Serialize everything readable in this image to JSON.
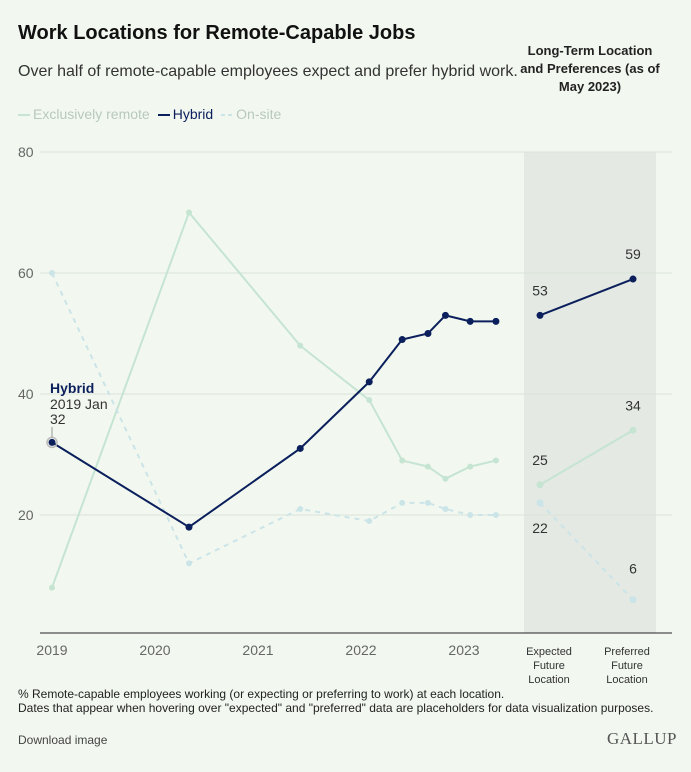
{
  "title": "Work Locations for Remote-Capable Jobs",
  "subtitle": "Over half of remote-capable employees expect and prefer hybrid work.",
  "long_term_heading": "Long-Term Location and Preferences (as of May 2023)",
  "footnote_1": "% Remote-capable employees working (or expecting or preferring to work) at each location.",
  "footnote_2": "Dates that appear when hovering over \"expected\" and \"preferred\" data are placeholders for data visualization purposes.",
  "download_label": "Download image",
  "logo": "GALLUP",
  "chart_data": {
    "type": "line",
    "ylim": [
      0,
      80
    ],
    "yticks": [
      20,
      40,
      60,
      80
    ],
    "xticks": [
      "2019",
      "2020",
      "2021",
      "2022",
      "2023"
    ],
    "grid": true,
    "legend_placement": "top-left",
    "x": [
      "2019 Jan",
      "2020 May",
      "2021 Jun",
      "2022 Feb",
      "2022 Jun",
      "2022 Aug",
      "2022 Oct",
      "2023 Feb",
      "2023 May"
    ],
    "xnum": [
      2019.0,
      2020.33,
      2021.41,
      2022.08,
      2022.4,
      2022.65,
      2022.82,
      2023.06,
      2023.31
    ],
    "series": [
      {
        "name": "Exclusively remote",
        "color": "#c6e4d2",
        "dashed": false,
        "values": [
          8,
          70,
          48,
          39,
          29,
          28,
          26,
          28,
          29
        ],
        "long_term": [
          25,
          34
        ]
      },
      {
        "name": "Hybrid",
        "color": "#0b1f5c",
        "dashed": false,
        "values": [
          32,
          18,
          31,
          42,
          49,
          50,
          53,
          52,
          52
        ],
        "long_term": [
          53,
          59
        ]
      },
      {
        "name": "On-site",
        "color": "#cbe4e8",
        "dashed": true,
        "values": [
          60,
          12,
          21,
          19,
          22,
          22,
          21,
          20,
          20
        ],
        "long_term": [
          22,
          6
        ]
      }
    ],
    "long_term_categories": [
      "Expected Future Location",
      "Preferred Future Location"
    ],
    "long_term_shading": "#e4e9e4",
    "annotation": {
      "series": "Hybrid",
      "date": "2019 Jan",
      "value": "32"
    }
  }
}
